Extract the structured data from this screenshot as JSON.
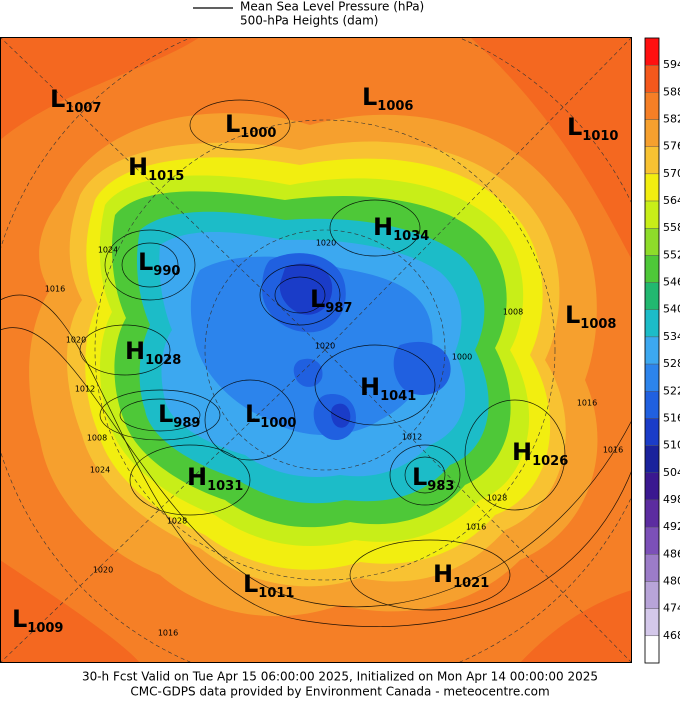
{
  "legend": {
    "line_label": "Mean Sea Level Pressure (hPa)",
    "field_label": "500-hPa Heights (dam)"
  },
  "colorbar": {
    "levels": [
      594,
      588,
      582,
      576,
      570,
      564,
      558,
      552,
      546,
      540,
      534,
      528,
      522,
      516,
      510,
      504,
      498,
      492,
      486,
      480,
      474,
      468
    ],
    "colors": [
      "#ff1010",
      "#f4581c",
      "#f57f26",
      "#f6a02e",
      "#f8c232",
      "#f2ee10",
      "#c8ee18",
      "#8edc2a",
      "#4ec838",
      "#22b870",
      "#1cbcc8",
      "#3ca8f0",
      "#2c84ec",
      "#2060e0",
      "#1a3cc8",
      "#1a229c",
      "#3a1890",
      "#5c2ca0",
      "#7c50b8",
      "#9c7cc8",
      "#b8a4d8",
      "#d4c8ea",
      "#ffffff"
    ]
  },
  "centers": [
    {
      "type": "L",
      "value": 1007
    },
    {
      "type": "L",
      "value": 1006
    },
    {
      "type": "L",
      "value": 1000
    },
    {
      "type": "L",
      "value": 1010
    },
    {
      "type": "H",
      "value": 1015
    },
    {
      "type": "H",
      "value": 1034
    },
    {
      "type": "L",
      "value": 990
    },
    {
      "type": "L",
      "value": 987
    },
    {
      "type": "L",
      "value": 1008
    },
    {
      "type": "H",
      "value": 1028
    },
    {
      "type": "H",
      "value": 1041
    },
    {
      "type": "L",
      "value": 989
    },
    {
      "type": "L",
      "value": 1000
    },
    {
      "type": "H",
      "value": 1026
    },
    {
      "type": "H",
      "value": 1031
    },
    {
      "type": "L",
      "value": 983
    },
    {
      "type": "L",
      "value": 1011
    },
    {
      "type": "H",
      "value": 1021
    },
    {
      "type": "L",
      "value": 1009
    }
  ],
  "isobar_labels": [
    1020,
    1016,
    1012,
    1008,
    1024,
    1028,
    1020,
    1016,
    1016,
    1012,
    1020,
    1000,
    1016,
    1016,
    1008,
    1024,
    1020,
    1028
  ],
  "footer": {
    "line1": "30-h Fcst Valid on Tue Apr 15 06:00:00 2025, Initialized on Mon Apr 14 00:00:00 2025",
    "line2": "CMC-GDPS data provided by Environment Canada - meteocentre.com"
  }
}
